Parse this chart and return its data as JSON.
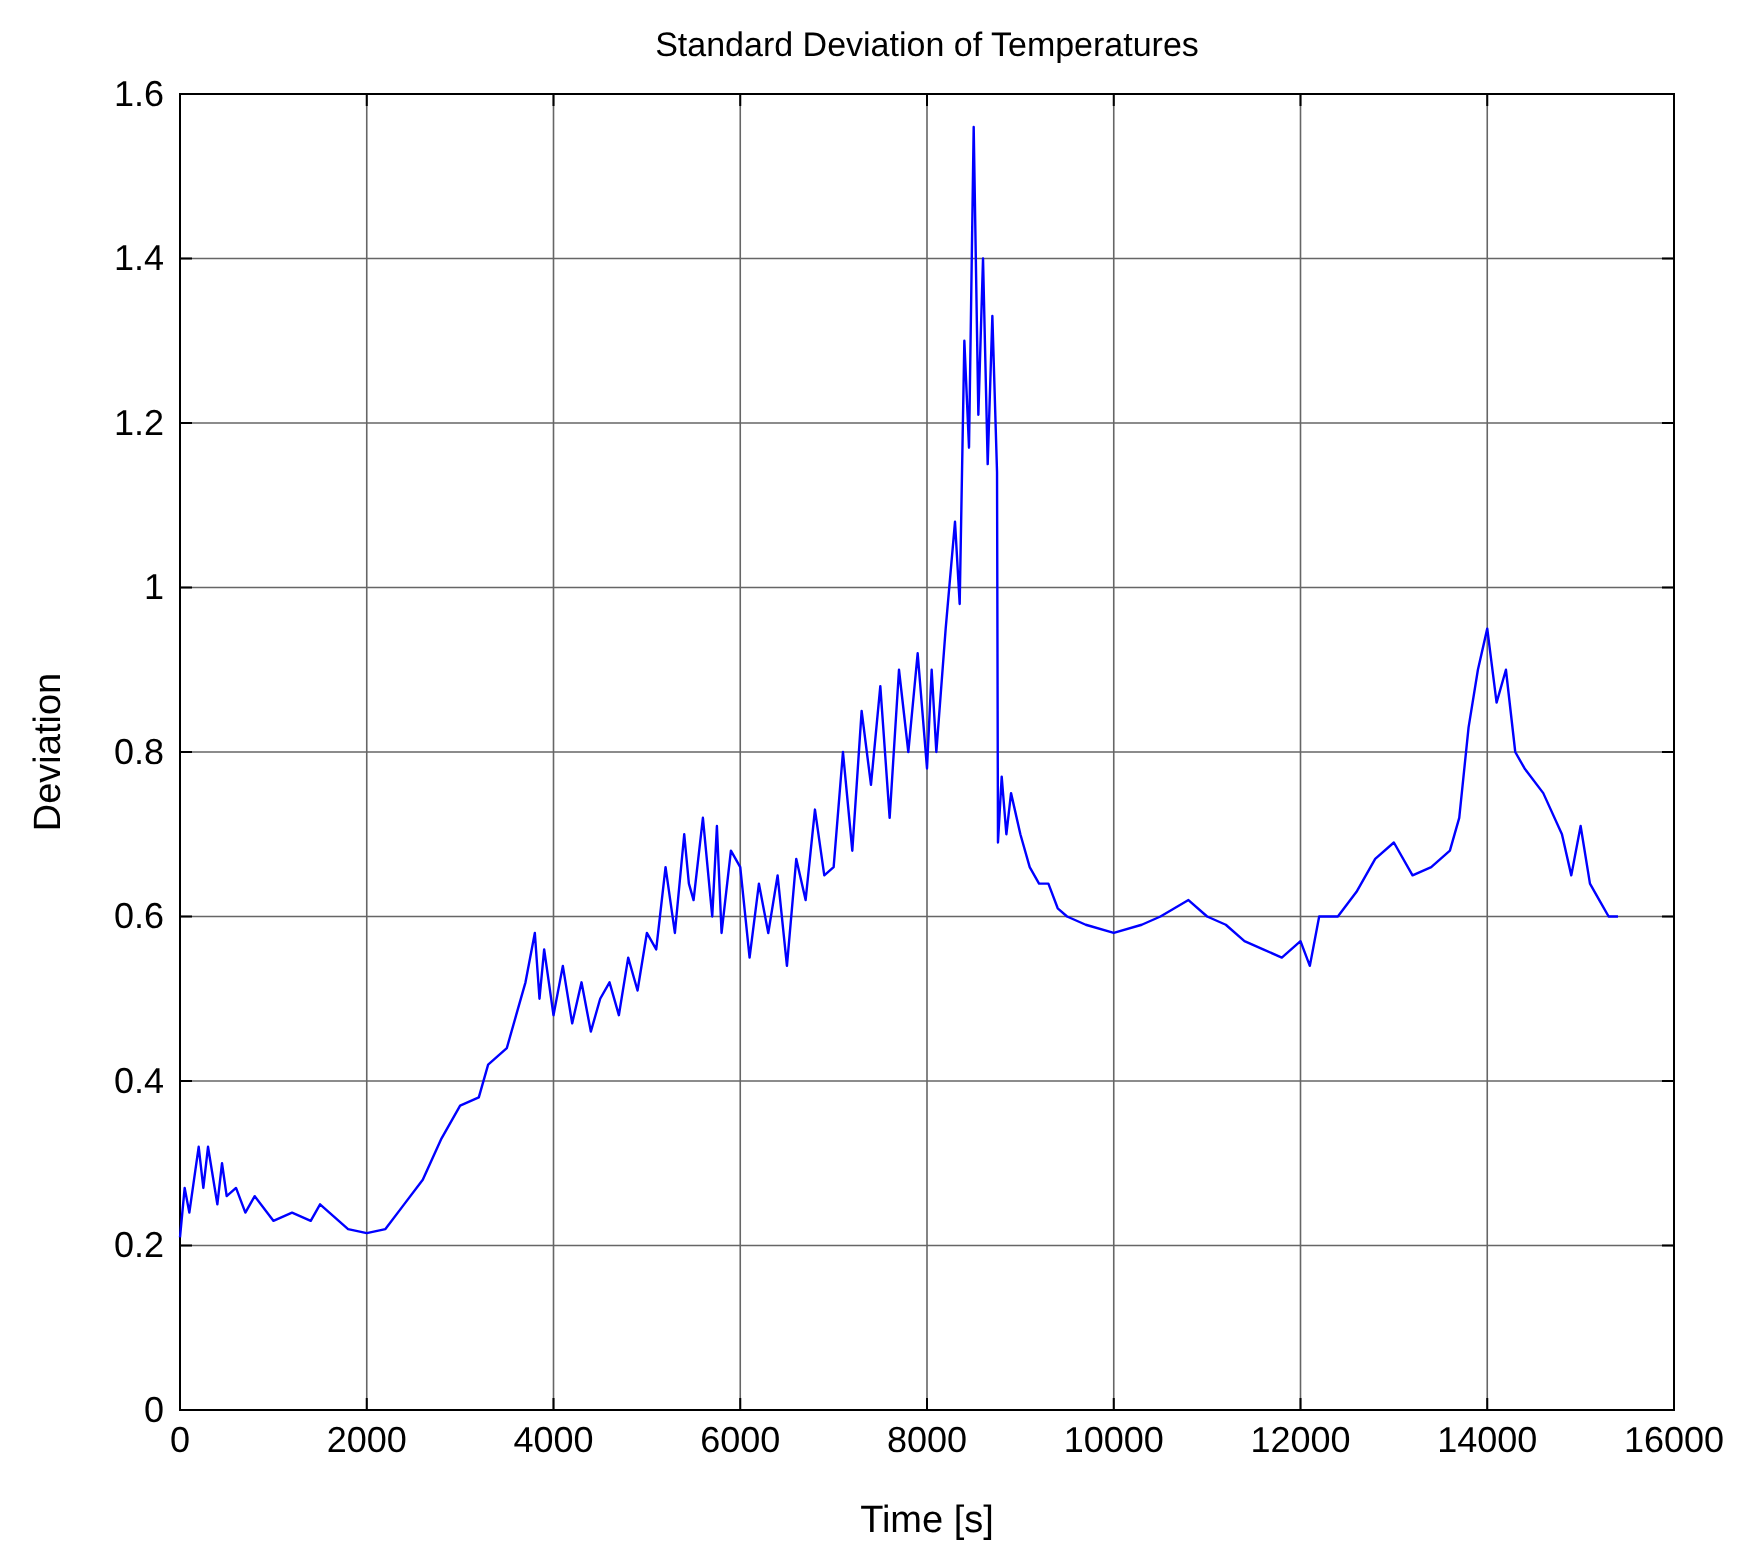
{
  "chart_data": {
    "type": "line",
    "title": "Standard Deviation of Temperatures",
    "xlabel": "Time [s]",
    "ylabel": "Deviation",
    "x": [
      0,
      50,
      100,
      200,
      250,
      300,
      400,
      450,
      500,
      600,
      700,
      800,
      1000,
      1200,
      1400,
      1500,
      1600,
      1800,
      2000,
      2200,
      2400,
      2600,
      2800,
      3000,
      3200,
      3300,
      3500,
      3600,
      3700,
      3800,
      3850,
      3900,
      4000,
      4100,
      4200,
      4300,
      4400,
      4500,
      4600,
      4700,
      4800,
      4900,
      5000,
      5100,
      5200,
      5300,
      5400,
      5450,
      5500,
      5600,
      5700,
      5750,
      5800,
      5900,
      6000,
      6100,
      6200,
      6300,
      6400,
      6500,
      6600,
      6700,
      6800,
      6900,
      7000,
      7100,
      7200,
      7300,
      7400,
      7500,
      7600,
      7700,
      7800,
      7900,
      8000,
      8050,
      8100,
      8200,
      8300,
      8350,
      8400,
      8450,
      8500,
      8550,
      8600,
      8650,
      8700,
      8750,
      8760,
      8800,
      8850,
      8900,
      9000,
      9100,
      9200,
      9300,
      9400,
      9500,
      9700,
      10000,
      10300,
      10500,
      10800,
      11000,
      11200,
      11400,
      11600,
      11800,
      12000,
      12100,
      12200,
      12400,
      12600,
      12800,
      13000,
      13200,
      13400,
      13600,
      13700,
      13800,
      13900,
      14000,
      14100,
      14200,
      14300,
      14400,
      14600,
      14800,
      14900,
      15000,
      15100,
      15200,
      15300,
      15400
    ],
    "series": [
      {
        "color": "#0000ff",
        "values": [
          0.21,
          0.27,
          0.24,
          0.32,
          0.27,
          0.32,
          0.25,
          0.3,
          0.26,
          0.27,
          0.24,
          0.26,
          0.23,
          0.24,
          0.23,
          0.25,
          0.24,
          0.22,
          0.215,
          0.22,
          0.25,
          0.28,
          0.33,
          0.37,
          0.38,
          0.42,
          0.44,
          0.48,
          0.52,
          0.58,
          0.5,
          0.56,
          0.48,
          0.54,
          0.47,
          0.52,
          0.46,
          0.5,
          0.52,
          0.48,
          0.55,
          0.51,
          0.58,
          0.56,
          0.66,
          0.58,
          0.7,
          0.64,
          0.62,
          0.72,
          0.6,
          0.71,
          0.58,
          0.68,
          0.66,
          0.55,
          0.64,
          0.58,
          0.65,
          0.54,
          0.67,
          0.62,
          0.73,
          0.65,
          0.66,
          0.8,
          0.68,
          0.85,
          0.76,
          0.88,
          0.72,
          0.9,
          0.8,
          0.92,
          0.78,
          0.9,
          0.8,
          0.95,
          1.08,
          0.98,
          1.3,
          1.17,
          1.56,
          1.21,
          1.4,
          1.15,
          1.33,
          1.14,
          0.69,
          0.77,
          0.7,
          0.75,
          0.7,
          0.66,
          0.64,
          0.64,
          0.61,
          0.6,
          0.59,
          0.58,
          0.59,
          0.6,
          0.62,
          0.6,
          0.59,
          0.57,
          0.56,
          0.55,
          0.57,
          0.54,
          0.6,
          0.6,
          0.63,
          0.67,
          0.69,
          0.65,
          0.66,
          0.68,
          0.72,
          0.83,
          0.9,
          0.95,
          0.86,
          0.9,
          0.8,
          0.78,
          0.75,
          0.7,
          0.65,
          0.71,
          0.64,
          0.62,
          0.6,
          0.6
        ]
      }
    ],
    "xlim": [
      0,
      16000
    ],
    "xticks": [
      0,
      2000,
      4000,
      6000,
      8000,
      10000,
      12000,
      14000,
      16000
    ],
    "ylim": [
      0,
      1.6
    ],
    "yticks": [
      0,
      0.2,
      0.4,
      0.6,
      0.8,
      1,
      1.2,
      1.4,
      1.6
    ],
    "grid": true,
    "line_style": "solid",
    "marker": "none"
  }
}
